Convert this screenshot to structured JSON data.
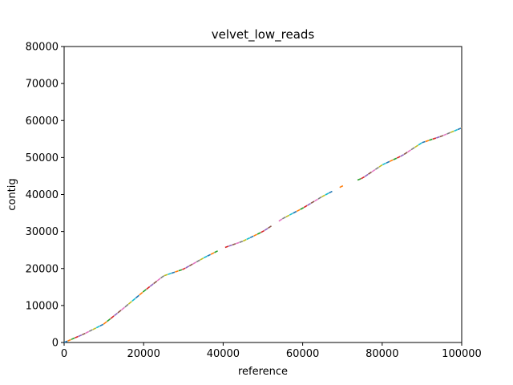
{
  "chart_data": {
    "type": "line",
    "title": "velvet_low_reads",
    "xlabel": "reference",
    "ylabel": "contig",
    "xlim": [
      0,
      100000
    ],
    "ylim": [
      0,
      80000
    ],
    "xticks": [
      "0",
      "20000",
      "40000",
      "60000",
      "80000",
      "100000"
    ],
    "yticks": [
      "0",
      "10000",
      "20000",
      "30000",
      "40000",
      "50000",
      "60000",
      "70000",
      "80000"
    ],
    "grid": false,
    "legend": "none",
    "series_colors": [
      "#1f77b4",
      "#ff7f0e",
      "#2ca02c",
      "#d62728",
      "#9467bd",
      "#8c564b",
      "#e377c2",
      "#7f7f7f",
      "#bcbd22",
      "#17becf"
    ],
    "alignment_path": {
      "x": [
        0,
        5000,
        10000,
        15000,
        20000,
        25000,
        30000,
        35000,
        40000,
        45000,
        50000,
        55000,
        60000,
        65000,
        70000,
        75000,
        80000,
        85000,
        90000,
        95000,
        100000
      ],
      "y": [
        0,
        2300,
        5000,
        9300,
        13800,
        18000,
        19800,
        22800,
        25500,
        27400,
        30000,
        33500,
        36300,
        39500,
        42300,
        44400,
        48000,
        50500,
        54000,
        55800,
        58000
      ]
    },
    "gaps_x": [
      [
        39500,
        40500
      ],
      [
        52800,
        53500
      ],
      [
        68000,
        69000
      ],
      [
        70500,
        71300
      ],
      [
        72800,
        73300
      ]
    ],
    "segment_length": 900
  }
}
